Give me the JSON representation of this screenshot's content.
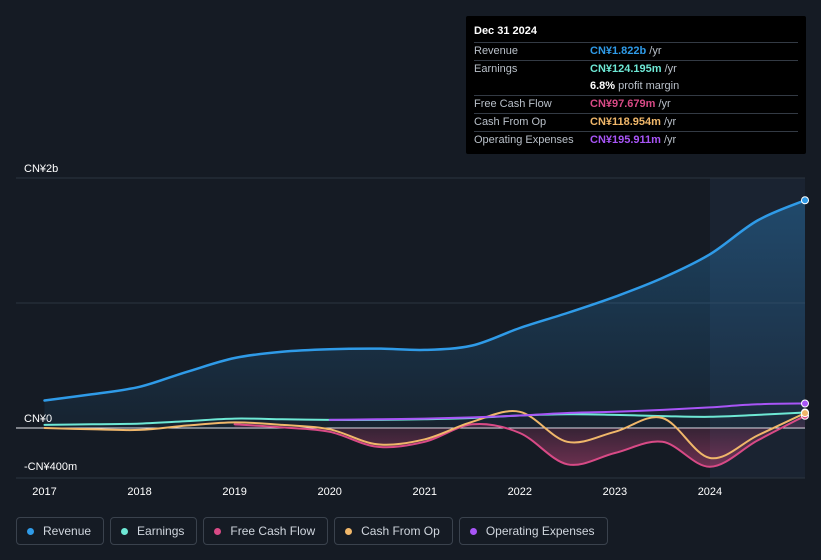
{
  "tooltip": {
    "date": "Dec 31 2024",
    "rows": [
      {
        "label": "Revenue",
        "value": "CN¥1.822b",
        "unit": "/yr",
        "color": "#2f9be8"
      },
      {
        "label": "Earnings",
        "value": "CN¥124.195m",
        "unit": "/yr",
        "color": "#6ee8d5"
      },
      {
        "label": "",
        "value": "6.8%",
        "unit": "profit margin",
        "color": "#ffffff"
      },
      {
        "label": "Free Cash Flow",
        "value": "CN¥97.679m",
        "unit": "/yr",
        "color": "#d84a86"
      },
      {
        "label": "Cash From Op",
        "value": "CN¥118.954m",
        "unit": "/yr",
        "color": "#f0b76a"
      },
      {
        "label": "Operating Expenses",
        "value": "CN¥195.911m",
        "unit": "/yr",
        "color": "#a855f7"
      }
    ]
  },
  "legend": [
    {
      "label": "Revenue",
      "color": "#2f9be8"
    },
    {
      "label": "Earnings",
      "color": "#6ee8d5"
    },
    {
      "label": "Free Cash Flow",
      "color": "#d84a86"
    },
    {
      "label": "Cash From Op",
      "color": "#f0b76a"
    },
    {
      "label": "Operating Expenses",
      "color": "#a855f7"
    }
  ],
  "chart_data": {
    "type": "line",
    "y_tick_labels": [
      "CN¥2b",
      "CN¥0",
      "-CN¥400m"
    ],
    "y_ticks": [
      2000,
      0,
      -400
    ],
    "x_tick_labels": [
      "2017",
      "2018",
      "2019",
      "2020",
      "2021",
      "2022",
      "2023",
      "2024"
    ],
    "x_ticks": [
      2017,
      2018,
      2019,
      2020,
      2021,
      2022,
      2023,
      2024
    ],
    "xlim": [
      2016.7,
      2025.0
    ],
    "ylim": [
      -400,
      2000
    ],
    "grid": true,
    "series": [
      {
        "name": "Revenue",
        "color": "#2f9be8",
        "fill": true,
        "x": [
          2017.0,
          2017.5,
          2018.0,
          2018.5,
          2019.0,
          2019.5,
          2020.0,
          2020.5,
          2021.0,
          2021.5,
          2022.0,
          2022.5,
          2023.0,
          2023.5,
          2024.0,
          2024.5,
          2025.0
        ],
        "y": [
          220,
          270,
          330,
          450,
          560,
          610,
          630,
          635,
          625,
          660,
          800,
          920,
          1050,
          1200,
          1390,
          1660,
          1822
        ]
      },
      {
        "name": "Earnings",
        "color": "#6ee8d5",
        "x": [
          2017.0,
          2017.5,
          2018.0,
          2018.5,
          2019.0,
          2019.5,
          2020.0,
          2020.5,
          2021.0,
          2021.5,
          2022.0,
          2022.5,
          2023.0,
          2023.5,
          2024.0,
          2024.5,
          2025.0
        ],
        "y": [
          25,
          30,
          35,
          55,
          75,
          70,
          65,
          65,
          70,
          80,
          100,
          110,
          105,
          95,
          90,
          105,
          124.195
        ]
      },
      {
        "name": "Free Cash Flow",
        "color": "#d84a86",
        "fill": true,
        "x": [
          2019.0,
          2019.5,
          2020.0,
          2020.5,
          2021.0,
          2021.5,
          2022.0,
          2022.5,
          2023.0,
          2023.5,
          2024.0,
          2024.5,
          2025.0
        ],
        "y": [
          30,
          5,
          -30,
          -150,
          -110,
          30,
          -40,
          -290,
          -200,
          -110,
          -310,
          -100,
          97.679
        ]
      },
      {
        "name": "Cash From Op",
        "color": "#f0b76a",
        "x": [
          2017.0,
          2017.5,
          2018.0,
          2018.5,
          2019.0,
          2019.5,
          2020.0,
          2020.5,
          2021.0,
          2021.5,
          2022.0,
          2022.5,
          2023.0,
          2023.5,
          2024.0,
          2024.5,
          2025.0
        ],
        "y": [
          0,
          -10,
          -15,
          20,
          45,
          25,
          -10,
          -130,
          -90,
          50,
          130,
          -110,
          -30,
          80,
          -240,
          -60,
          118.954
        ]
      },
      {
        "name": "Operating Expenses",
        "color": "#a855f7",
        "x": [
          2020.0,
          2020.5,
          2021.0,
          2021.5,
          2022.0,
          2022.5,
          2023.0,
          2023.5,
          2024.0,
          2024.5,
          2025.0
        ],
        "y": [
          65,
          70,
          75,
          85,
          100,
          120,
          130,
          145,
          165,
          190,
          195.911
        ]
      }
    ]
  }
}
